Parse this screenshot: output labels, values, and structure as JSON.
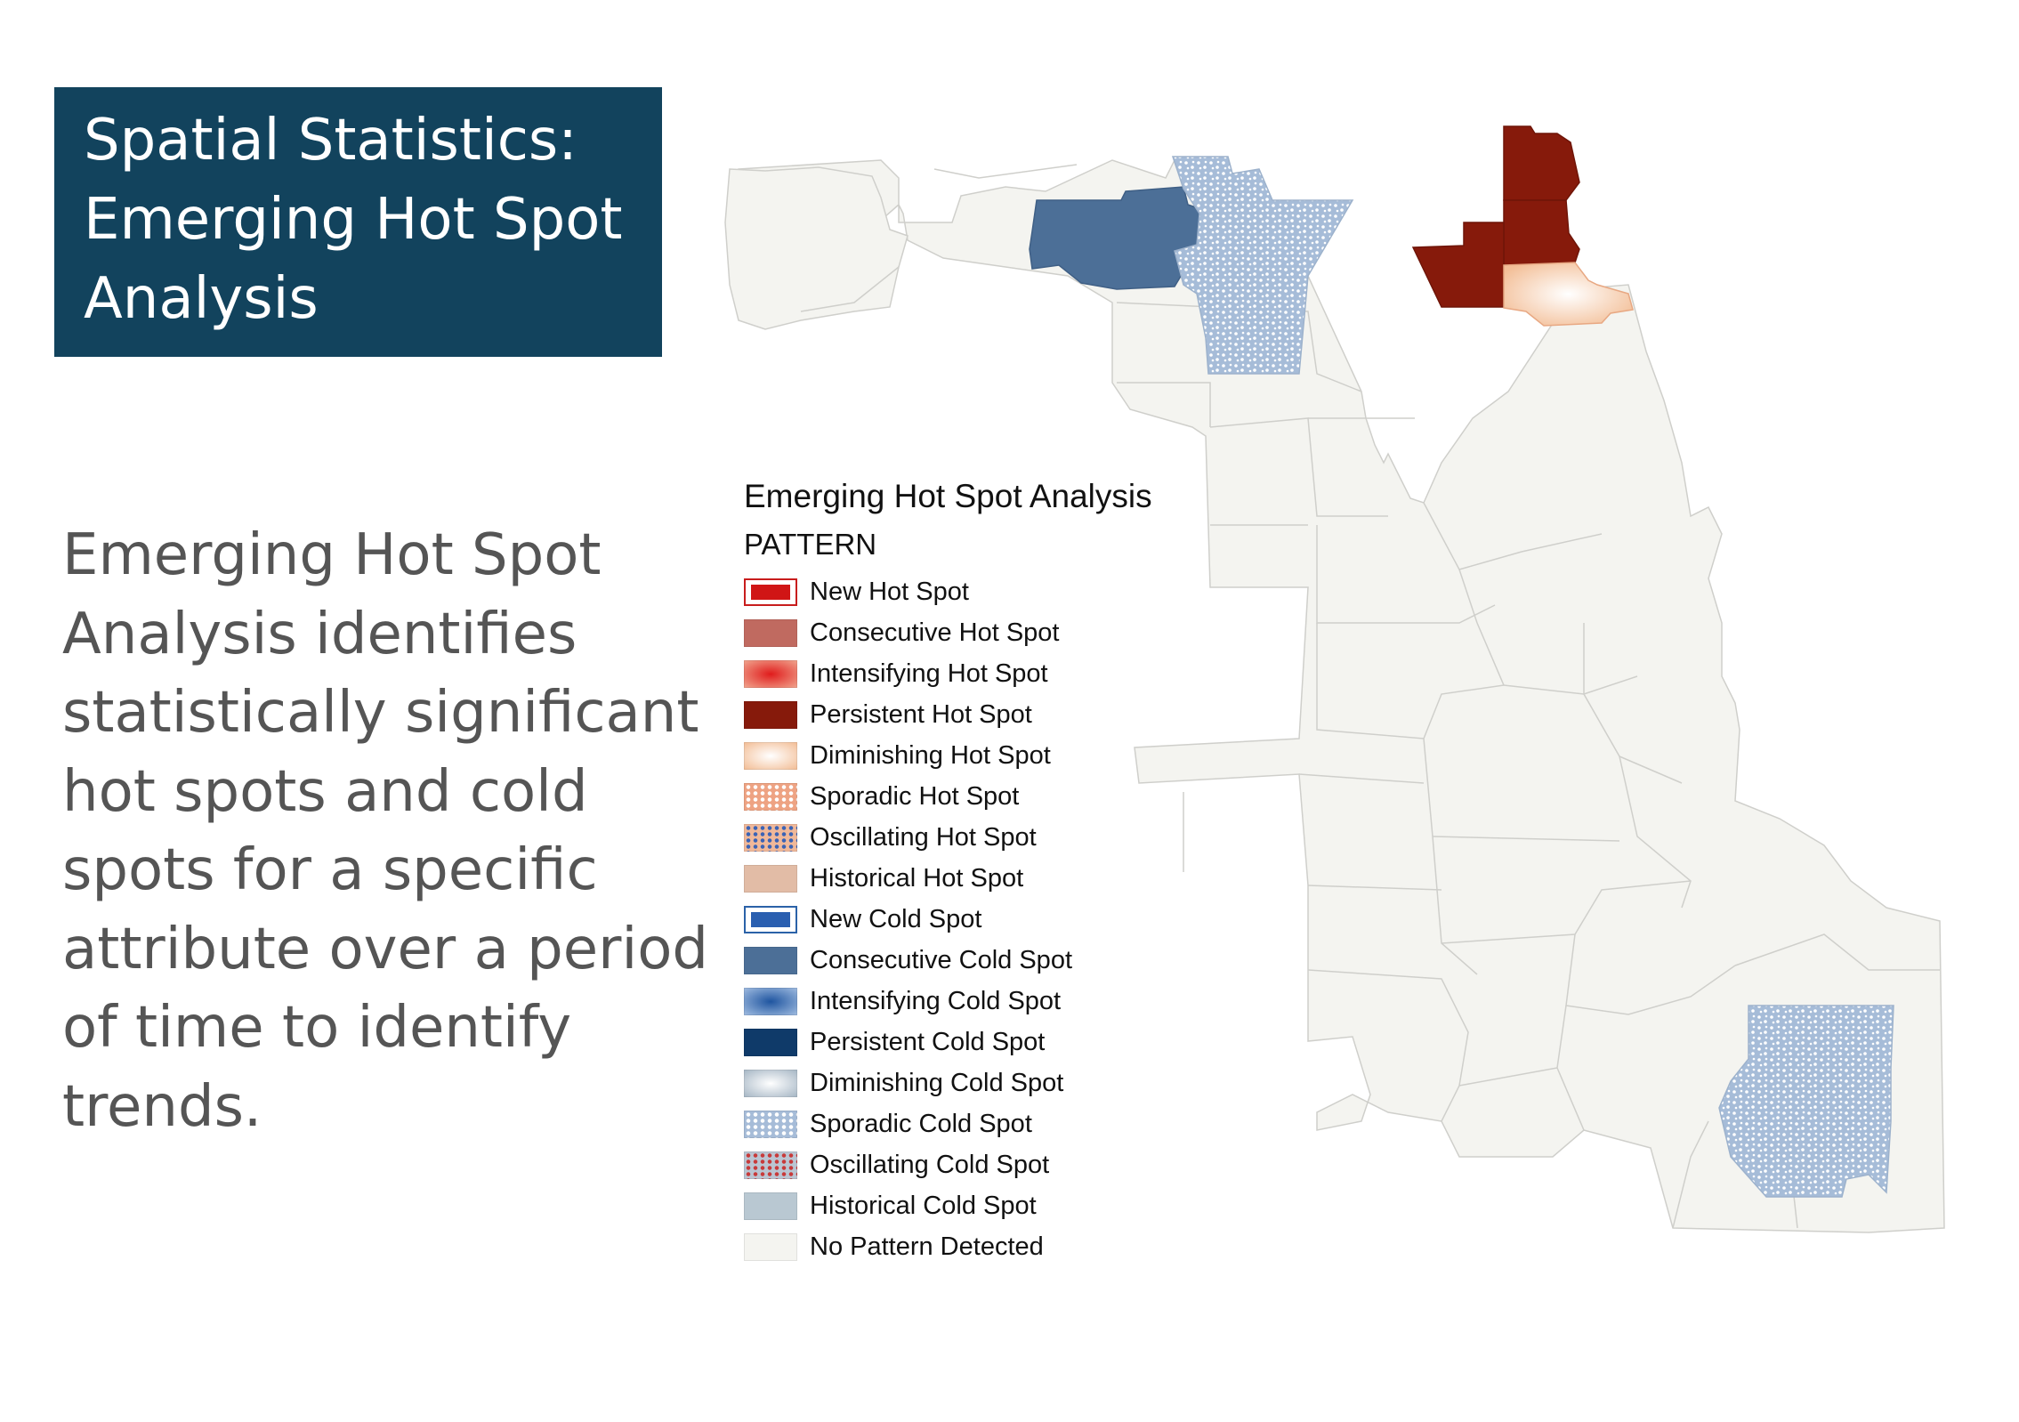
{
  "title": {
    "lines": [
      "Spatial Statistics:",
      "Emerging Hot Spot",
      "Analysis"
    ],
    "background": "#12435d"
  },
  "description": {
    "lines": [
      "Emerging Hot Spot",
      "Analysis identifies",
      "statistically significant",
      "hot spots and cold",
      "spots for a specific",
      "attribute over a period",
      "of time to identify",
      "trends."
    ]
  },
  "legend": {
    "title": "Emerging Hot Spot Analysis",
    "subtitle": "PATTERN",
    "items": [
      {
        "label": "New Hot Spot",
        "color": "#d01515"
      },
      {
        "label": "Consecutive Hot Spot",
        "color": "#c06a60"
      },
      {
        "label": "Intensifying Hot Spot",
        "color": "#e01c1c"
      },
      {
        "label": "Persistent Hot Spot",
        "color": "#861a0b"
      },
      {
        "label": "Diminishing Hot Spot",
        "color": "#f3bf98"
      },
      {
        "label": "Sporadic Hot Spot",
        "color": "#eea383"
      },
      {
        "label": "Oscillating Hot Spot",
        "color": "#f0b899"
      },
      {
        "label": "Historical Hot Spot",
        "color": "#e2bca6"
      },
      {
        "label": "New Cold Spot",
        "color": "#2a5fb0"
      },
      {
        "label": "Consecutive Cold Spot",
        "color": "#4c6f97"
      },
      {
        "label": "Intensifying Cold Spot",
        "color": "#1f55a0"
      },
      {
        "label": "Persistent Cold Spot",
        "color": "#0f3a69"
      },
      {
        "label": "Diminishing Cold Spot",
        "color": "#a8b8c6"
      },
      {
        "label": "Sporadic Cold Spot",
        "color": "#a6bcd8"
      },
      {
        "label": "Oscillating Cold Spot",
        "color": "#bac5d2"
      },
      {
        "label": "Historical Cold Spot",
        "color": "#b9c8d2"
      },
      {
        "label": "No Pattern Detected",
        "color": "#f4f4f0"
      }
    ]
  },
  "map": {
    "region_patterns": {
      "northwest-area": "Consecutive Cold Spot",
      "north-area": "Sporadic Cold Spot",
      "northeast-upper-areas": "Persistent Hot Spot",
      "northeast-lakefront-area": "Diminishing Hot Spot",
      "southeast-area": "Sporadic Cold Spot",
      "other-areas": "No Pattern Detected"
    }
  }
}
